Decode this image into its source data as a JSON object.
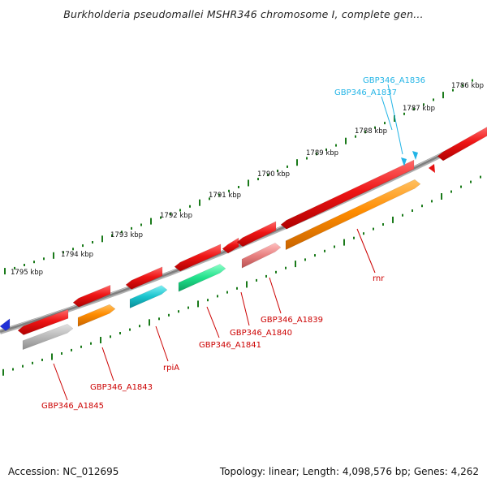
{
  "title": "Burkholderia pseudomallei MSHR346 chromosome I, complete gen...",
  "footer": {
    "accession": "Accession: NC_012695",
    "topology": "Topology: linear; Length: 4,098,576 bp; Genes: 4,262"
  },
  "colors": {
    "backbone": "#808080",
    "ruler_tick": "#1a7a1a",
    "gene_red": "#e51010",
    "gene_orange": "#ff8c00",
    "gene_gray": "#b8b8b8",
    "gene_cyan": "#19c2cc",
    "gene_green": "#1fe08a",
    "gene_pink": "#e88080",
    "label_red": "#cc0000",
    "label_cyan": "#22b4e6"
  },
  "kbp_labels": [
    "1786 kbp",
    "1787 kbp",
    "1788 kbp",
    "1789 kbp",
    "1790 kbp",
    "1791 kbp",
    "1792 kbp",
    "1793 kbp",
    "1794 kbp",
    "1795 kbp"
  ],
  "gene_labels": [
    "GBP346_A1836",
    "GBP346_A1837",
    "rnr",
    "GBP346_A1839",
    "GBP346_A1840",
    "GBP346_A1841",
    "rpiA",
    "GBP346_A1843",
    "GBP346_A1845"
  ]
}
